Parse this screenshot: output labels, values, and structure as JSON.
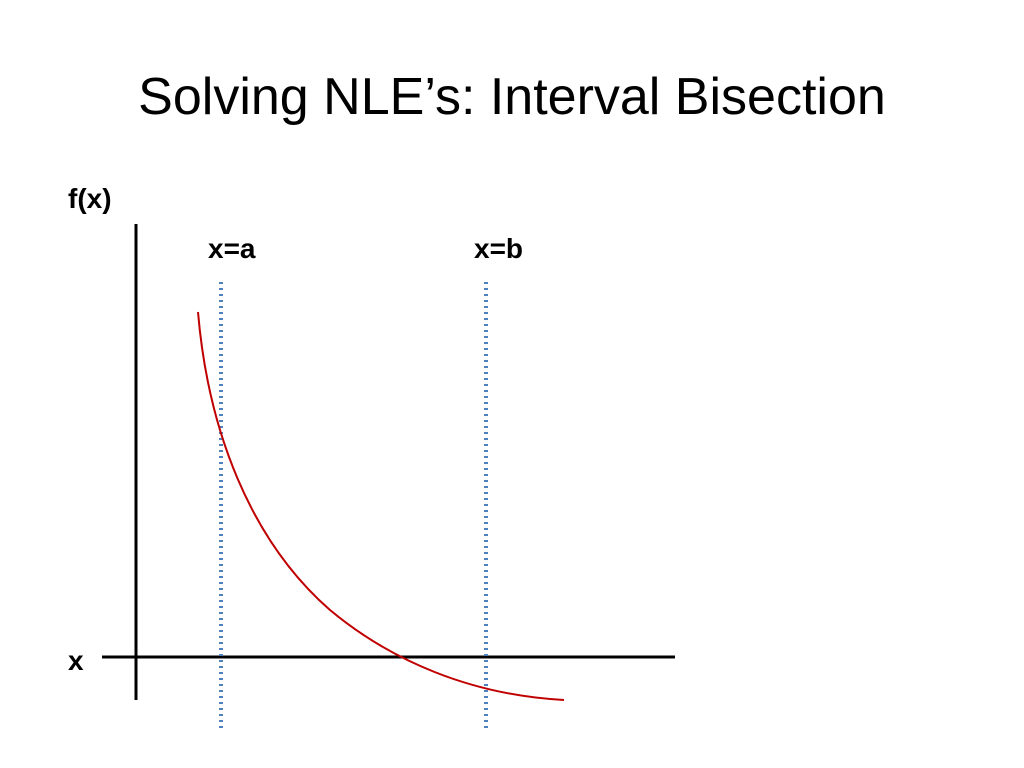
{
  "slide": {
    "title": "Solving NLE’s: Interval Bisection"
  },
  "diagram": {
    "y_axis_label": "f(x)",
    "x_axis_label": "x",
    "bounds": [
      {
        "label": "x=a"
      },
      {
        "label": "x=b"
      }
    ],
    "colors": {
      "axes": "#000000",
      "curve": "#c00000",
      "bound_lines": "#4f81bd",
      "text": "#000000"
    }
  }
}
